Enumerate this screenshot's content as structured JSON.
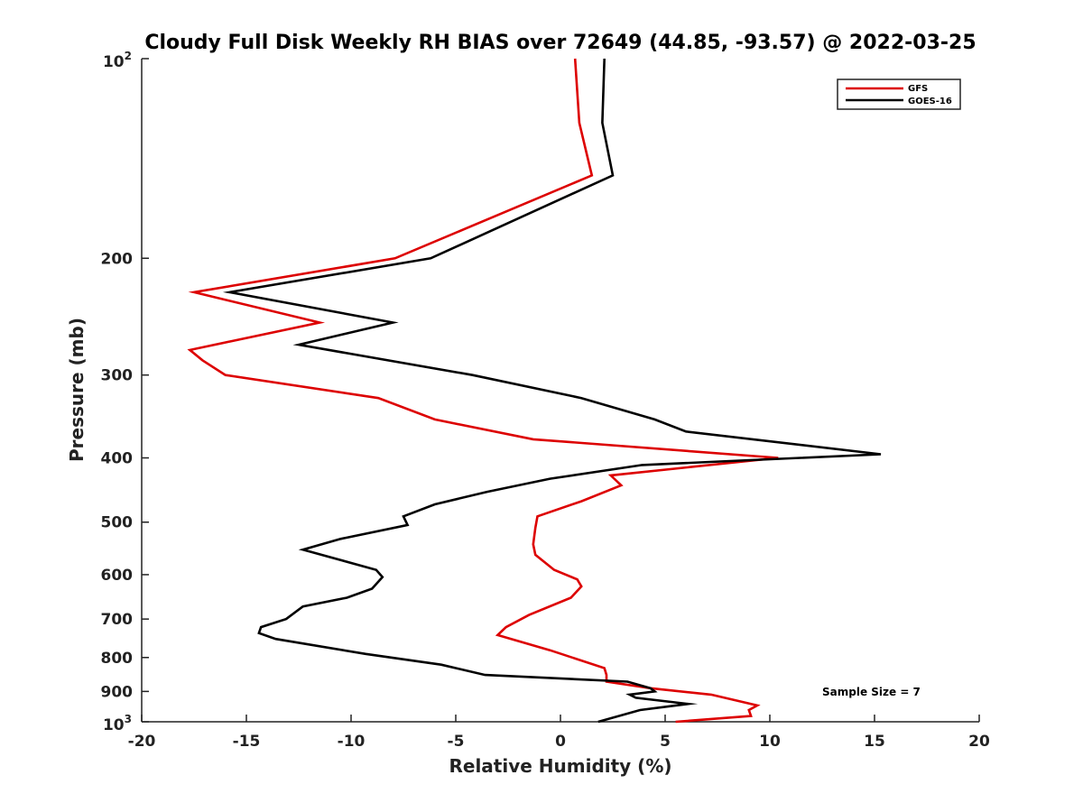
{
  "chart_data": {
    "type": "line",
    "title": "Cloudy Full Disk Weekly RH BIAS over 72649 (44.85, -93.57) @ 2022-03-25",
    "xlabel": "Relative Humidity (%)",
    "ylabel": "Pressure (mb)",
    "xlim": [
      -20,
      20
    ],
    "ylim": [
      100,
      1000
    ],
    "y_scale": "log",
    "y_reversed": true,
    "grid": false,
    "legend_position": "top-right",
    "x_ticks": [
      "-20",
      "-15",
      "-10",
      "-5",
      "0",
      "5",
      "10",
      "15",
      "20"
    ],
    "y_ticks": [
      {
        "value": 100,
        "base": "10",
        "exp": "2"
      },
      {
        "value": 200,
        "label": "200"
      },
      {
        "value": 300,
        "label": "300"
      },
      {
        "value": 400,
        "label": "400"
      },
      {
        "value": 500,
        "label": "500"
      },
      {
        "value": 600,
        "label": "600"
      },
      {
        "value": 700,
        "label": "700"
      },
      {
        "value": 800,
        "label": "800"
      },
      {
        "value": 900,
        "label": "900"
      },
      {
        "value": 1000,
        "base": "10",
        "exp": "3"
      }
    ],
    "annotation": "Sample Size = 7",
    "series": [
      {
        "name": "GFS",
        "color": "#dd0000",
        "points": [
          [
            0.7,
            100
          ],
          [
            0.9,
            125
          ],
          [
            1.5,
            150
          ],
          [
            -7.9,
            200
          ],
          [
            -17.5,
            225
          ],
          [
            -11.5,
            250
          ],
          [
            -17.7,
            275
          ],
          [
            -17.1,
            285
          ],
          [
            -16,
            300
          ],
          [
            -8.7,
            325
          ],
          [
            -6,
            350
          ],
          [
            -1.3,
            375
          ],
          [
            10.4,
            400
          ],
          [
            2.4,
            425
          ],
          [
            2.9,
            440
          ],
          [
            1.0,
            465
          ],
          [
            -1.1,
            490
          ],
          [
            -1.2,
            510
          ],
          [
            -1.3,
            540
          ],
          [
            -1.2,
            560
          ],
          [
            -0.3,
            590
          ],
          [
            0.8,
            610
          ],
          [
            1.0,
            625
          ],
          [
            0.5,
            650
          ],
          [
            -1.5,
            690
          ],
          [
            -2.6,
            720
          ],
          [
            -3.0,
            740
          ],
          [
            -0.5,
            780
          ],
          [
            2.1,
            830
          ],
          [
            2.2,
            850
          ],
          [
            2.2,
            870
          ],
          [
            4.3,
            890
          ],
          [
            7.2,
            910
          ],
          [
            9.4,
            945
          ],
          [
            9.0,
            960
          ],
          [
            9.1,
            980
          ],
          [
            5.5,
            1000
          ]
        ]
      },
      {
        "name": "GOES-16",
        "color": "#000000",
        "points": [
          [
            2.1,
            100
          ],
          [
            2.0,
            125
          ],
          [
            2.5,
            150
          ],
          [
            -6.2,
            200
          ],
          [
            -15.8,
            225
          ],
          [
            -8,
            250
          ],
          [
            -12.5,
            270
          ],
          [
            -4.2,
            300
          ],
          [
            1,
            325
          ],
          [
            4.5,
            350
          ],
          [
            6,
            365
          ],
          [
            15.3,
            395
          ],
          [
            3.9,
            410
          ],
          [
            -0.5,
            430
          ],
          [
            -3.5,
            450
          ],
          [
            -6,
            470
          ],
          [
            -7.5,
            490
          ],
          [
            -7.3,
            505
          ],
          [
            -10.5,
            530
          ],
          [
            -12.3,
            550
          ],
          [
            -8.8,
            590
          ],
          [
            -8.5,
            605
          ],
          [
            -9,
            630
          ],
          [
            -10.2,
            650
          ],
          [
            -12.3,
            670
          ],
          [
            -13.1,
            700
          ],
          [
            -14.3,
            720
          ],
          [
            -14.4,
            735
          ],
          [
            -13.6,
            750
          ],
          [
            -9.3,
            790
          ],
          [
            -5.7,
            820
          ],
          [
            -3.6,
            850
          ],
          [
            3.2,
            870
          ],
          [
            4.3,
            890
          ],
          [
            4.5,
            900
          ],
          [
            3.3,
            910
          ],
          [
            3.6,
            920
          ],
          [
            6.1,
            940
          ],
          [
            3.8,
            960
          ],
          [
            1.8,
            1000
          ]
        ]
      }
    ]
  }
}
